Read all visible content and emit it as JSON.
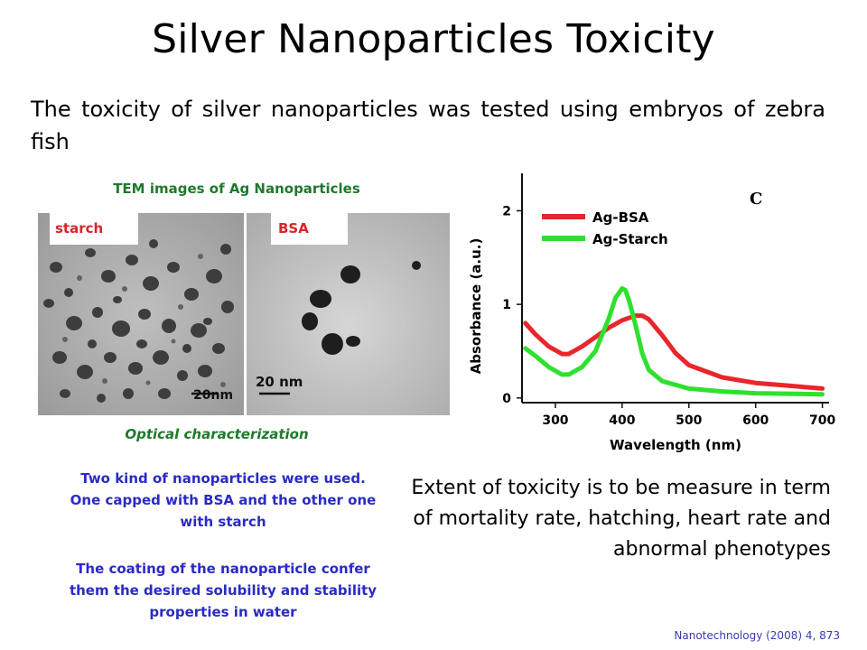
{
  "slide": {
    "title": "Silver Nanoparticles Toxicity",
    "intro": "The toxicity of silver nanoparticles was tested using embryos of zebra fish",
    "tem_title": "TEM images of Ag Nanoparticles",
    "tem_labels": {
      "starch": "starch",
      "bsa": "BSA"
    },
    "scale_bars": {
      "starch": "20nm",
      "bsa": "20 nm"
    },
    "optical_title": "Optical characterization",
    "notes": [
      "Two kind of nanoparticles were used. One capped with BSA and the other one with starch",
      "The coating of the nanoparticle confer them the desired solubility and stability properties in water"
    ],
    "toxicity_text": "Extent of toxicity is to be measure in term of mortality rate, hatching, heart rate and abnormal phenotypes",
    "reference": "Nanotechnology (2008) 4, 873"
  },
  "chart_data": {
    "type": "line",
    "panel_label": "C",
    "xlabel": "Wavelength (nm)",
    "ylabel": "Absorbance (a.u.)",
    "xlim": [
      250,
      710
    ],
    "ylim": [
      -0.05,
      2.4
    ],
    "xticks": [
      300,
      400,
      500,
      600,
      700
    ],
    "yticks": [
      0,
      1,
      2
    ],
    "legend_position": "top-left",
    "series": [
      {
        "name": "Ag-BSA",
        "color": "#e8262b",
        "x": [
          255,
          270,
          290,
          310,
          320,
          340,
          360,
          380,
          400,
          420,
          430,
          440,
          460,
          480,
          500,
          550,
          600,
          650,
          700
        ],
        "y": [
          0.8,
          0.68,
          0.55,
          0.47,
          0.47,
          0.55,
          0.65,
          0.75,
          0.83,
          0.88,
          0.88,
          0.84,
          0.67,
          0.48,
          0.35,
          0.22,
          0.16,
          0.13,
          0.1
        ]
      },
      {
        "name": "Ag-Starch",
        "color": "#2fe02f",
        "x": [
          255,
          270,
          290,
          310,
          320,
          340,
          360,
          380,
          390,
          400,
          405,
          410,
          420,
          430,
          440,
          460,
          500,
          550,
          600,
          700
        ],
        "y": [
          0.53,
          0.45,
          0.33,
          0.25,
          0.25,
          0.33,
          0.5,
          0.85,
          1.07,
          1.17,
          1.15,
          1.05,
          0.78,
          0.48,
          0.3,
          0.18,
          0.1,
          0.07,
          0.05,
          0.04
        ]
      }
    ]
  }
}
